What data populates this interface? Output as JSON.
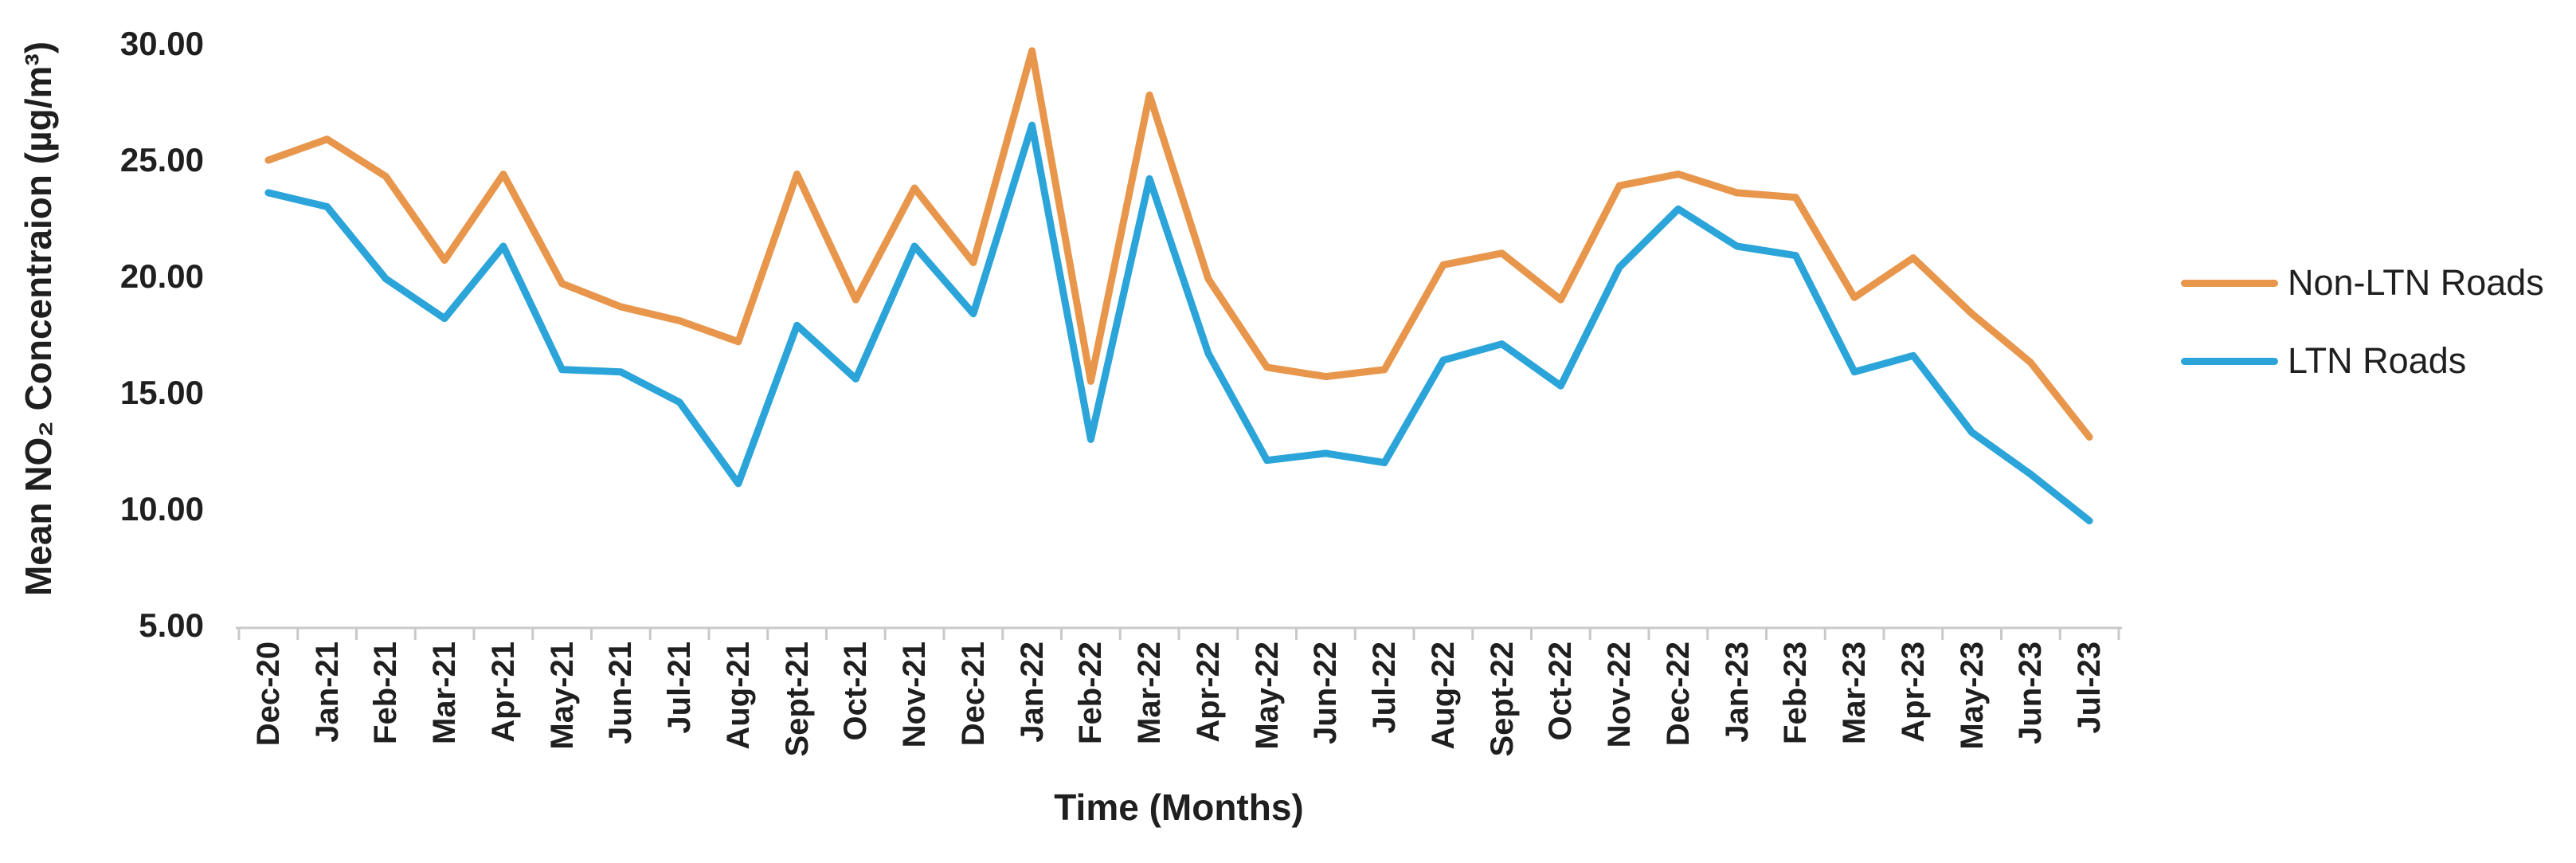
{
  "chart_data": {
    "type": "line",
    "title": "",
    "xlabel": "Time (Months)",
    "ylabel": "Mean NO₂ Concentraion (µg/m³)",
    "ylim": [
      5,
      30
    ],
    "ytick_labels": [
      "30.00",
      "25.00",
      "20.00",
      "15.00",
      "10.00",
      "5.00"
    ],
    "grid": false,
    "legend_position": "right",
    "categories": [
      "Dec-20",
      "Jan-21",
      "Feb-21",
      "Mar-21",
      "Apr-21",
      "May-21",
      "Jun-21",
      "Jul-21",
      "Aug-21",
      "Sept-21",
      "Oct-21",
      "Nov-21",
      "Dec-21",
      "Jan-22",
      "Feb-22",
      "Mar-22",
      "Apr-22",
      "May-22",
      "Jun-22",
      "Jul-22",
      "Aug-22",
      "Sept-22",
      "Oct-22",
      "Nov-22",
      "Dec-22",
      "Jan-23",
      "Feb-23",
      "Mar-23",
      "Apr-23",
      "May-23",
      "Jun-23",
      "Jul-23"
    ],
    "series": [
      {
        "name": "Non-LTN Roads",
        "color": "#E8964B",
        "values": [
          25.0,
          25.9,
          24.3,
          20.7,
          24.4,
          19.7,
          18.7,
          18.1,
          17.2,
          24.4,
          19.0,
          23.8,
          20.6,
          29.7,
          15.5,
          27.8,
          19.9,
          16.1,
          15.7,
          16.0,
          20.5,
          21.0,
          19.0,
          23.9,
          24.4,
          23.6,
          23.4,
          19.1,
          20.8,
          18.4,
          16.3,
          13.1
        ]
      },
      {
        "name": "LTN Roads",
        "color": "#2BA4D9",
        "values": [
          23.6,
          23.0,
          19.9,
          18.2,
          21.3,
          16.0,
          15.9,
          14.6,
          11.1,
          17.9,
          15.6,
          21.3,
          18.4,
          26.5,
          13.0,
          24.2,
          16.7,
          12.1,
          12.4,
          12.0,
          16.4,
          17.1,
          15.3,
          20.4,
          22.9,
          21.3,
          20.9,
          15.9,
          16.6,
          13.3,
          11.5,
          9.5
        ]
      }
    ]
  },
  "colors": {
    "axis_line": "#C9C9C9",
    "tick_mark": "#C9C9C9",
    "label_text": "#1F1F1F"
  }
}
